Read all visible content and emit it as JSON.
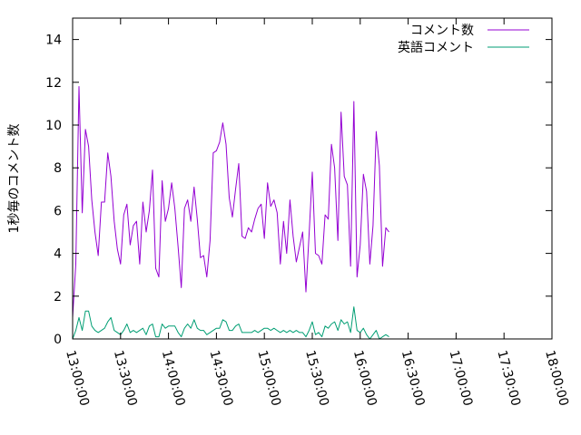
{
  "chart_data": {
    "type": "line",
    "ylabel": "1秒毎のコメント数",
    "xlabel": "",
    "title": "",
    "xlim": [
      "13:00:00",
      "18:00:00"
    ],
    "ylim": [
      0,
      15
    ],
    "x_ticks": [
      "13:00:00",
      "13:30:00",
      "14:00:00",
      "14:30:00",
      "15:00:00",
      "15:30:00",
      "16:00:00",
      "16:30:00",
      "17:00:00",
      "17:30:00",
      "18:00:00"
    ],
    "y_ticks": [
      0,
      2,
      4,
      6,
      8,
      10,
      12,
      14
    ],
    "grid": false,
    "legend_position": "top-right",
    "series": [
      {
        "name": "コメント数",
        "color": "#9400d3",
        "x_start": "13:00:00",
        "x_step_minutes": 2,
        "values": [
          1.0,
          3.5,
          11.8,
          5.9,
          9.8,
          9.0,
          6.5,
          5.0,
          3.9,
          6.4,
          6.4,
          8.7,
          7.6,
          5.5,
          4.2,
          3.5,
          5.8,
          6.3,
          4.4,
          5.3,
          5.5,
          3.5,
          6.4,
          5.0,
          6.0,
          7.9,
          3.3,
          2.9,
          7.4,
          5.5,
          6.1,
          7.3,
          6.1,
          4.3,
          2.4,
          6.1,
          6.5,
          5.5,
          7.1,
          5.6,
          3.8,
          3.9,
          2.9,
          4.6,
          8.7,
          8.8,
          9.2,
          10.1,
          9.1,
          6.6,
          5.7,
          7.0,
          8.2,
          4.8,
          4.7,
          5.2,
          5.0,
          5.6,
          6.1,
          6.3,
          4.7,
          7.3,
          6.2,
          6.5,
          5.9,
          3.5,
          5.5,
          4.0,
          6.5,
          4.8,
          3.6,
          4.3,
          5.0,
          2.2,
          4.9,
          7.8,
          4.0,
          3.9,
          3.5,
          5.8,
          5.6,
          9.1,
          8.0,
          4.6,
          10.6,
          7.6,
          7.2,
          3.4,
          11.1,
          2.9,
          4.4,
          7.7,
          6.9,
          3.5,
          5.3,
          9.7,
          8.1,
          3.4,
          5.2,
          5.0
        ]
      },
      {
        "name": "英語コメント",
        "color": "#009e73",
        "x_start": "13:00:00",
        "x_step_minutes": 2,
        "values": [
          0.0,
          0.4,
          1.0,
          0.4,
          1.3,
          1.3,
          0.6,
          0.4,
          0.3,
          0.4,
          0.5,
          0.8,
          1.0,
          0.4,
          0.3,
          0.2,
          0.4,
          0.7,
          0.3,
          0.4,
          0.3,
          0.4,
          0.5,
          0.2,
          0.6,
          0.7,
          0.1,
          0.1,
          0.7,
          0.5,
          0.6,
          0.6,
          0.6,
          0.3,
          0.1,
          0.5,
          0.7,
          0.5,
          0.9,
          0.5,
          0.4,
          0.4,
          0.2,
          0.3,
          0.4,
          0.5,
          0.5,
          0.9,
          0.8,
          0.4,
          0.4,
          0.6,
          0.7,
          0.3,
          0.3,
          0.3,
          0.3,
          0.4,
          0.3,
          0.4,
          0.5,
          0.5,
          0.4,
          0.5,
          0.4,
          0.3,
          0.4,
          0.3,
          0.4,
          0.3,
          0.4,
          0.3,
          0.3,
          0.1,
          0.4,
          0.8,
          0.2,
          0.3,
          0.1,
          0.6,
          0.5,
          0.7,
          0.8,
          0.4,
          0.9,
          0.7,
          0.8,
          0.3,
          1.5,
          0.4,
          0.3,
          0.5,
          0.2,
          0.0,
          0.2,
          0.4,
          0.0,
          0.1,
          0.2,
          0.1
        ]
      }
    ]
  }
}
